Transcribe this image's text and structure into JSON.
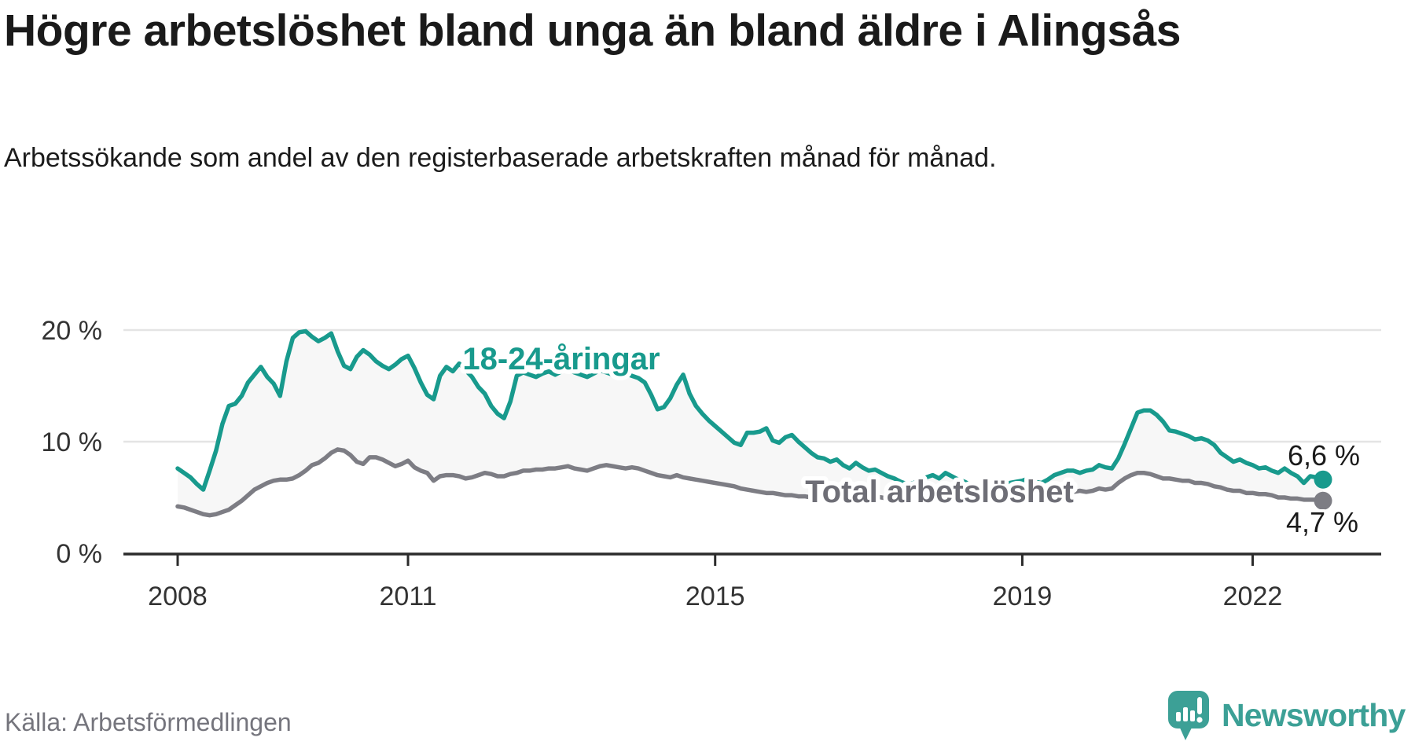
{
  "header": {
    "title": "Högre arbetslöshet bland unga än bland äldre i Alingsås",
    "subtitle": "Arbetssökande som andel av den registerbaserade arbetskraften månad för månad."
  },
  "footer": {
    "source": "Källa: Arbetsförmedlingen",
    "brand": "Newsworthy"
  },
  "colors": {
    "accent_teal": "#189a8d",
    "total_gray": "#7d7d84",
    "total_label_gray": "#6e6e76",
    "value_text": "#1a1a1a",
    "axis_text": "#333333",
    "axis_line": "#2b2b2b",
    "gridline": "#e4e4e4",
    "band_fill": "#f7f7f7",
    "logo_teal": "#3ca096",
    "source_gray": "#75757d"
  },
  "chart_data": {
    "type": "line",
    "frequency": "monthly",
    "x_start": "2008-01",
    "x_end": "2022-12",
    "ylim": [
      0,
      21
    ],
    "grid": "horizontal",
    "legend_position": "inline-labels",
    "yticks": [
      {
        "label": "0 %",
        "value": 0
      },
      {
        "label": "10 %",
        "value": 10
      },
      {
        "label": "20 %",
        "value": 20
      }
    ],
    "xticks": [
      {
        "label": "2008",
        "index": 0
      },
      {
        "label": "2011",
        "index": 36
      },
      {
        "label": "2015",
        "index": 84
      },
      {
        "label": "2019",
        "index": 132
      },
      {
        "label": "2022",
        "index": 168
      }
    ],
    "band_between_series": true,
    "series": [
      {
        "name": "18-24-åringar",
        "color": "#189a8d",
        "label_color": "#189a8d",
        "end_label": "6,6 %",
        "end_value": 6.6,
        "values": [
          7.6,
          7.2,
          6.8,
          6.2,
          5.7,
          7.4,
          9.2,
          11.6,
          13.2,
          13.4,
          14.1,
          15.3,
          16.0,
          16.7,
          15.8,
          15.2,
          14.1,
          17.2,
          19.3,
          19.8,
          19.9,
          19.4,
          19.0,
          19.3,
          19.7,
          18.1,
          16.8,
          16.5,
          17.6,
          18.2,
          17.8,
          17.2,
          16.8,
          16.5,
          16.9,
          17.4,
          17.7,
          16.6,
          15.3,
          14.2,
          13.8,
          15.9,
          16.7,
          16.3,
          17.0,
          16.4,
          15.8,
          14.9,
          14.3,
          13.2,
          12.5,
          12.1,
          13.6,
          15.9,
          16.2,
          16.0,
          15.8,
          16.1,
          16.3,
          16.0,
          16.3,
          16.5,
          16.2,
          16.0,
          15.8,
          16.1,
          16.4,
          16.2,
          16.0,
          16.3,
          16.1,
          15.9,
          15.7,
          15.3,
          14.2,
          12.9,
          13.1,
          13.9,
          15.1,
          16.0,
          14.3,
          13.2,
          12.5,
          11.9,
          11.4,
          10.9,
          10.4,
          9.9,
          9.7,
          10.8,
          10.8,
          10.9,
          11.2,
          10.1,
          9.9,
          10.4,
          10.6,
          10.0,
          9.5,
          9.0,
          8.6,
          8.5,
          8.2,
          8.4,
          7.9,
          7.6,
          8.1,
          7.7,
          7.4,
          7.5,
          7.2,
          6.9,
          6.7,
          6.4,
          6.2,
          6.3,
          6.5,
          6.8,
          7.0,
          6.7,
          7.2,
          6.9,
          6.6,
          6.4,
          6.1,
          6.0,
          5.9,
          6.1,
          6.2,
          6.0,
          6.3,
          6.4,
          6.5,
          6.7,
          6.4,
          6.3,
          6.6,
          7.0,
          7.2,
          7.4,
          7.4,
          7.2,
          7.4,
          7.5,
          7.9,
          7.7,
          7.6,
          8.5,
          9.8,
          11.2,
          12.6,
          12.8,
          12.8,
          12.4,
          11.8,
          11.0,
          10.9,
          10.7,
          10.5,
          10.2,
          10.3,
          10.1,
          9.7,
          9.0,
          8.6,
          8.2,
          8.4,
          8.1,
          7.9,
          7.6,
          7.7,
          7.4,
          7.2,
          7.6,
          7.2,
          6.9,
          6.3,
          6.9,
          6.8,
          6.6
        ]
      },
      {
        "name": "Total arbetslöshet",
        "color": "#7d7d84",
        "label_color": "#6e6e76",
        "end_label": "4,7 %",
        "end_value": 4.7,
        "values": [
          4.2,
          4.1,
          3.9,
          3.7,
          3.5,
          3.4,
          3.5,
          3.7,
          3.9,
          4.3,
          4.7,
          5.2,
          5.7,
          6.0,
          6.3,
          6.5,
          6.6,
          6.6,
          6.7,
          7.0,
          7.4,
          7.9,
          8.1,
          8.5,
          9.0,
          9.3,
          9.2,
          8.8,
          8.2,
          8.0,
          8.6,
          8.6,
          8.4,
          8.1,
          7.8,
          8.0,
          8.3,
          7.7,
          7.4,
          7.2,
          6.5,
          6.9,
          7.0,
          7.0,
          6.9,
          6.7,
          6.8,
          7.0,
          7.2,
          7.1,
          6.9,
          6.9,
          7.1,
          7.2,
          7.4,
          7.4,
          7.5,
          7.5,
          7.6,
          7.6,
          7.7,
          7.8,
          7.6,
          7.5,
          7.4,
          7.6,
          7.8,
          7.9,
          7.8,
          7.7,
          7.6,
          7.7,
          7.6,
          7.4,
          7.2,
          7.0,
          6.9,
          6.8,
          7.0,
          6.8,
          6.7,
          6.6,
          6.5,
          6.4,
          6.3,
          6.2,
          6.1,
          6.0,
          5.8,
          5.7,
          5.6,
          5.5,
          5.4,
          5.4,
          5.3,
          5.2,
          5.2,
          5.1,
          5.1,
          5.0,
          5.0,
          5.0,
          4.9,
          5.0,
          5.0,
          4.9,
          4.9,
          5.0,
          5.0,
          5.1,
          5.0,
          4.9,
          4.9,
          4.8,
          4.9,
          5.0,
          5.1,
          5.1,
          5.0,
          5.1,
          5.2,
          5.1,
          5.0,
          4.9,
          4.9,
          4.8,
          4.9,
          5.0,
          5.0,
          4.9,
          5.0,
          5.1,
          5.2,
          5.3,
          5.2,
          5.2,
          5.3,
          5.4,
          5.5,
          5.6,
          5.5,
          5.6,
          5.5,
          5.6,
          5.8,
          5.7,
          5.8,
          6.3,
          6.7,
          7.0,
          7.2,
          7.2,
          7.1,
          6.9,
          6.7,
          6.7,
          6.6,
          6.5,
          6.5,
          6.3,
          6.3,
          6.2,
          6.0,
          5.9,
          5.7,
          5.6,
          5.6,
          5.4,
          5.4,
          5.3,
          5.3,
          5.2,
          5.0,
          5.0,
          4.9,
          4.9,
          4.8,
          4.8,
          4.8,
          4.7
        ]
      }
    ]
  }
}
